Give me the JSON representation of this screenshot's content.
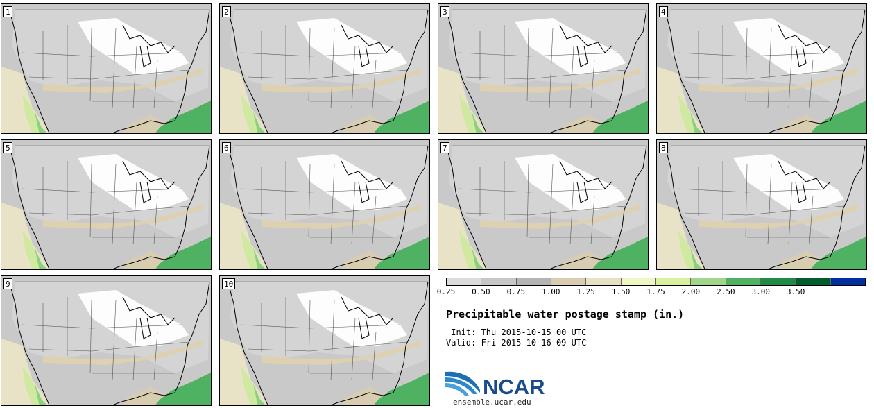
{
  "panels": [
    "1",
    "2",
    "3",
    "4",
    "5",
    "6",
    "7",
    "8",
    "9",
    "10"
  ],
  "colorbar": {
    "colors": [
      "#dcdcdc",
      "#c6c6c6",
      "#b4b4b4",
      "#d8cdb0",
      "#e6e1c4",
      "#eff6c3",
      "#d8f0a0",
      "#9fd68a",
      "#4fb262",
      "#1f8a44",
      "#005e2c",
      "#00309f"
    ],
    "ticks": [
      "0.25",
      "0.50",
      "0.75",
      "1.00",
      "1.25",
      "1.50",
      "1.75",
      "2.00",
      "2.50",
      "3.00",
      "3.50"
    ]
  },
  "title": "Precipitable water postage stamp (in.)",
  "init": "Init: Thu 2015-10-15 00 UTC",
  "valid": "Valid: Fri 2015-10-16 09 UTC",
  "logo": {
    "name": "NCAR",
    "color": "#1a4b8c"
  },
  "url": "ensemble.ucar.edu"
}
